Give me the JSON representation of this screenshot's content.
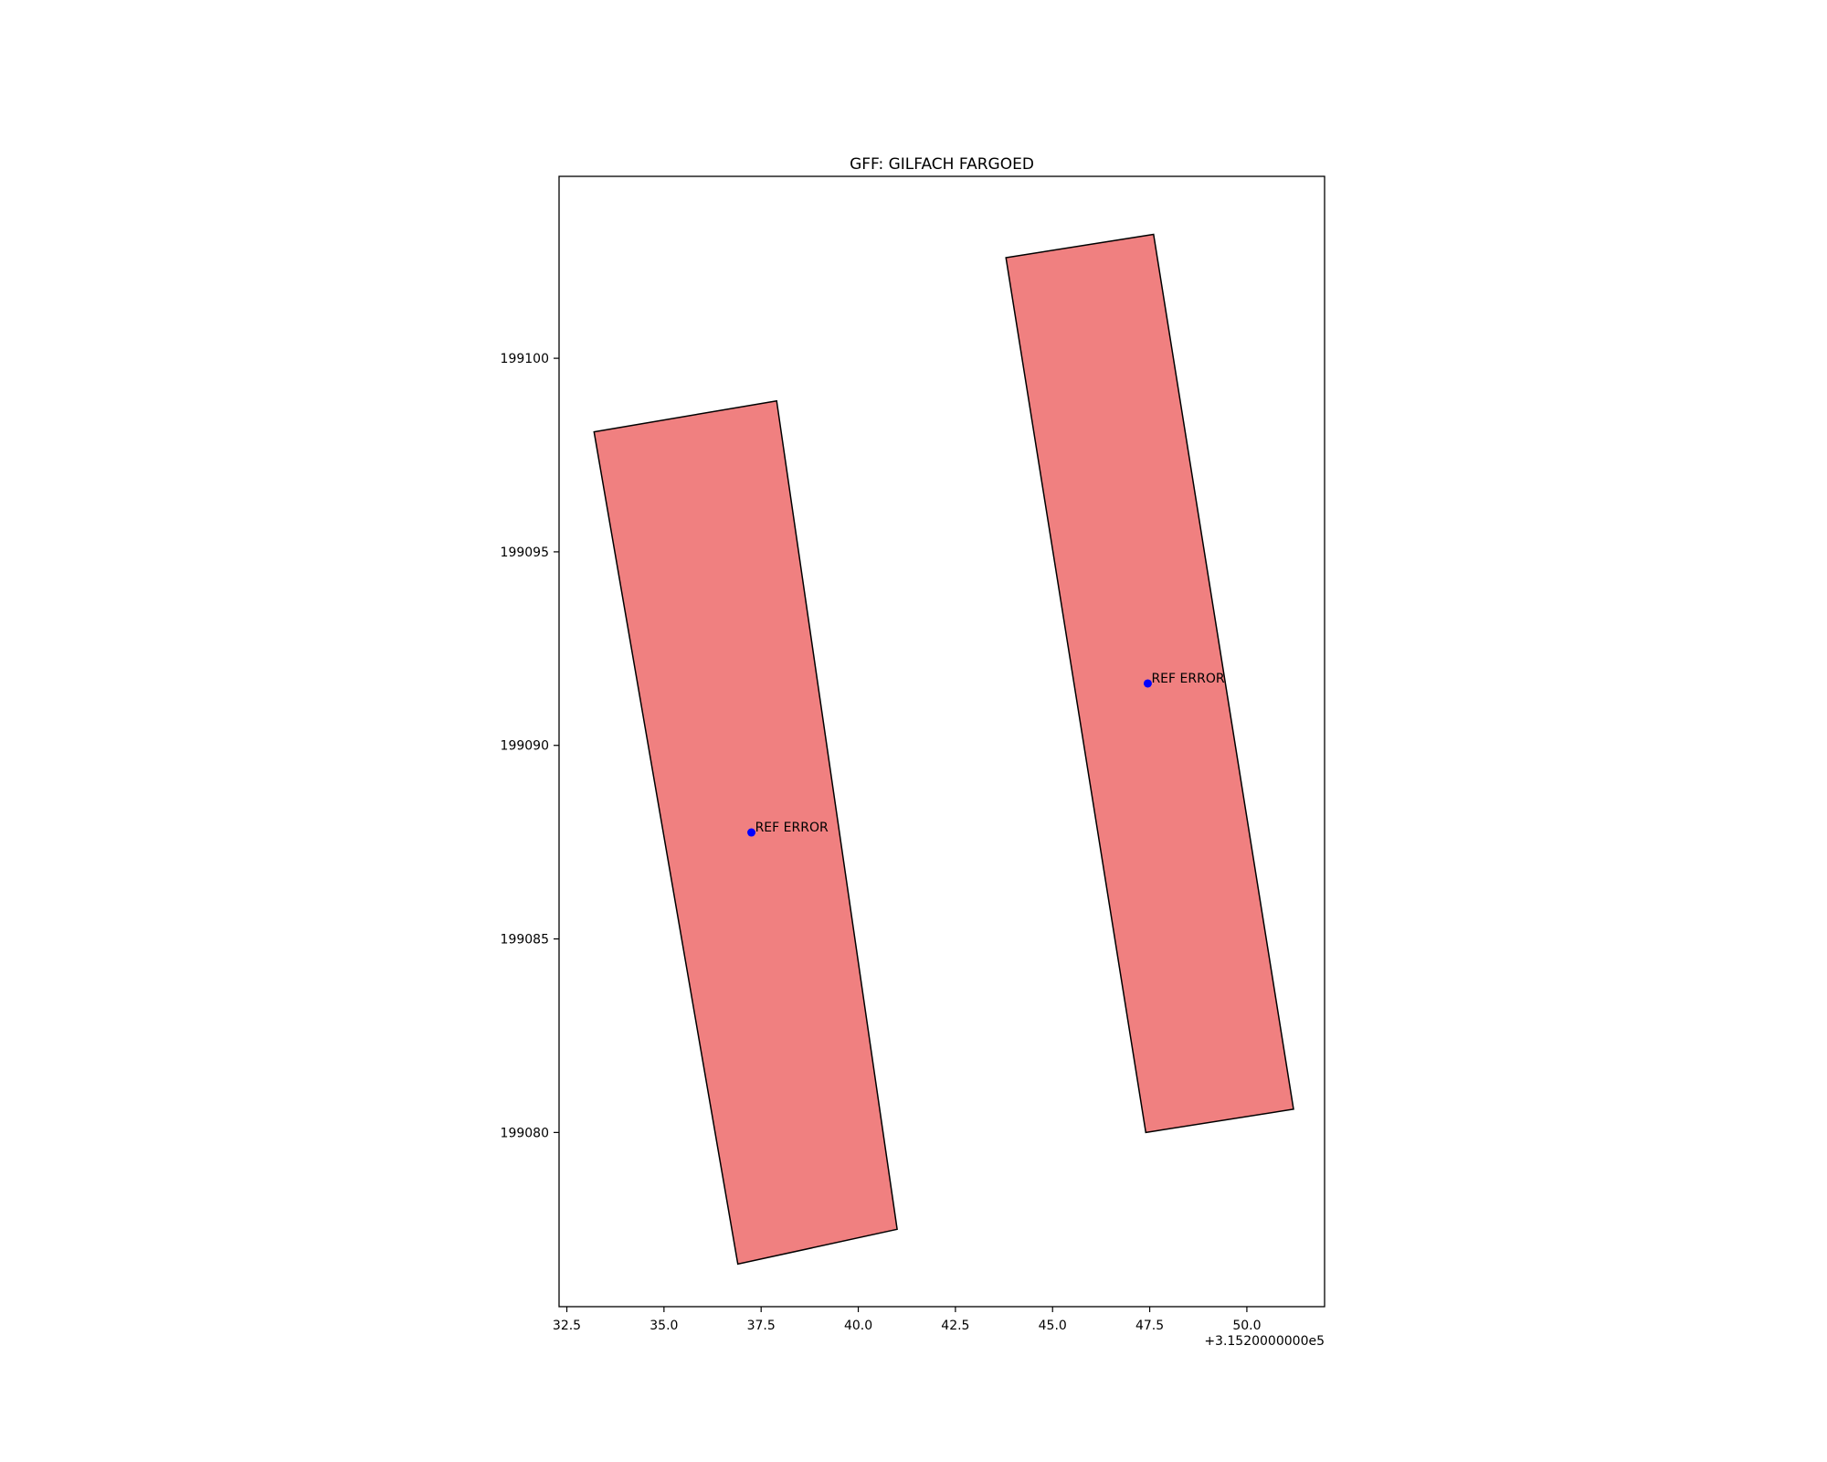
{
  "chart_data": {
    "type": "map",
    "title": "GFF: GILFACH FARGOED",
    "xlabel": "",
    "ylabel": "",
    "x_offset_label": "+3.1520000000e5",
    "xlim": [
      32.3,
      52.0
    ],
    "ylim": [
      199075.5,
      199104.7
    ],
    "x_ticks": [
      {
        "value": 32.5,
        "label": "32.5"
      },
      {
        "value": 35.0,
        "label": "35.0"
      },
      {
        "value": 37.5,
        "label": "37.5"
      },
      {
        "value": 40.0,
        "label": "40.0"
      },
      {
        "value": 42.5,
        "label": "42.5"
      },
      {
        "value": 45.0,
        "label": "45.0"
      },
      {
        "value": 47.5,
        "label": "47.5"
      },
      {
        "value": 50.0,
        "label": "50.0"
      }
    ],
    "y_ticks": [
      {
        "value": 199080,
        "label": "199080"
      },
      {
        "value": 199085,
        "label": "199085"
      },
      {
        "value": 199090,
        "label": "199090"
      },
      {
        "value": 199095,
        "label": "199095"
      },
      {
        "value": 199100,
        "label": "199100"
      }
    ],
    "grid": false,
    "polygons": [
      {
        "fill": "#f08080",
        "edge": "#000000",
        "points": [
          [
            33.2,
            199098.1
          ],
          [
            37.9,
            199098.9
          ],
          [
            41.0,
            199077.5
          ],
          [
            36.9,
            199076.6
          ]
        ]
      },
      {
        "fill": "#f08080",
        "edge": "#000000",
        "points": [
          [
            43.8,
            199102.6
          ],
          [
            47.6,
            199103.2
          ],
          [
            51.2,
            199080.6
          ],
          [
            47.4,
            199080.0
          ]
        ]
      }
    ],
    "points": [
      {
        "x": 37.25,
        "y": 199087.75,
        "color": "#0000ff",
        "label": "REF ERROR"
      },
      {
        "x": 47.45,
        "y": 199091.6,
        "color": "#0000ff",
        "label": "REF ERROR"
      }
    ]
  }
}
